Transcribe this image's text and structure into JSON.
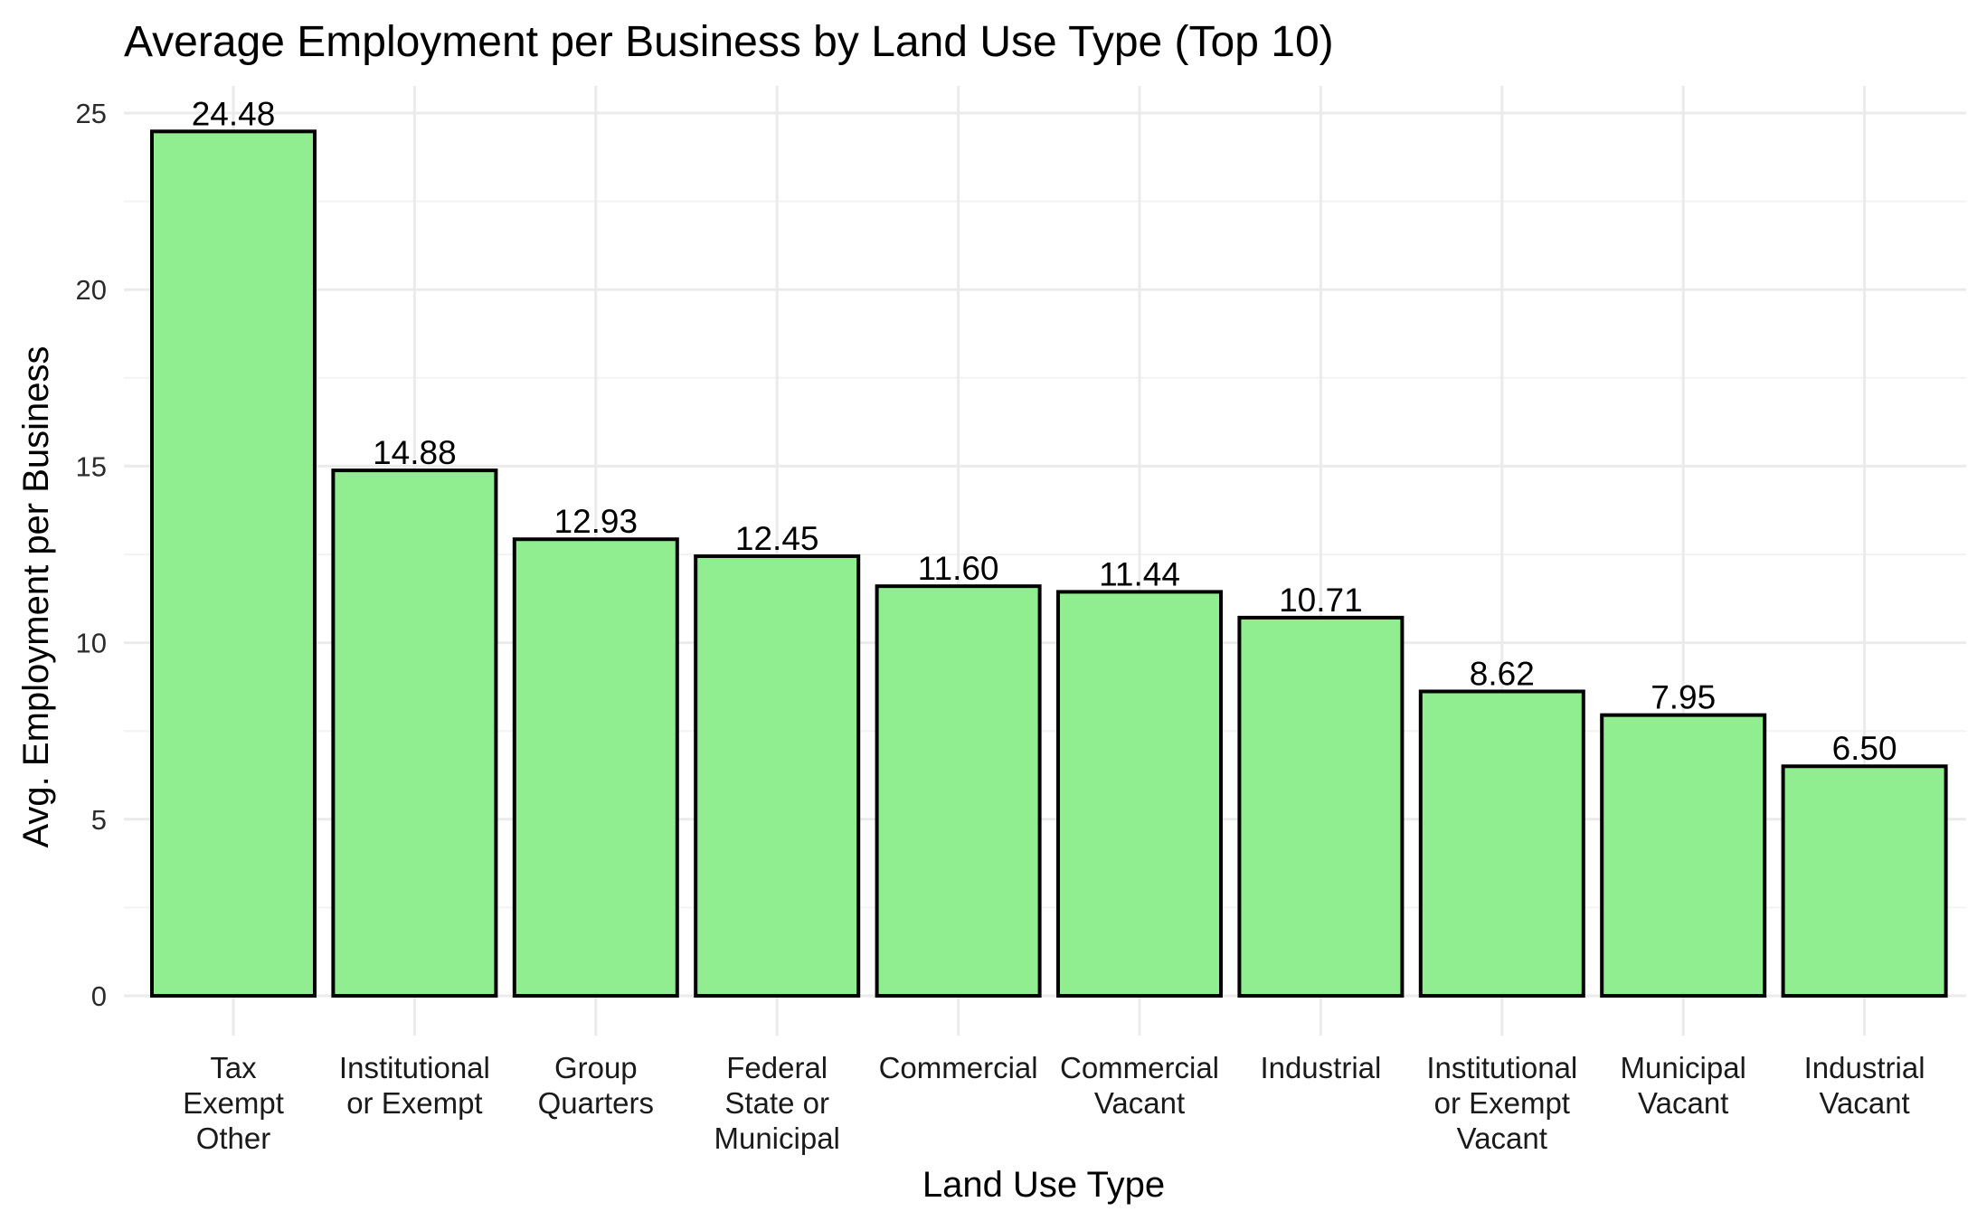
{
  "chart_data": {
    "type": "bar",
    "title": "Average Employment per Business by Land Use Type (Top 10)",
    "xlabel": "Land Use Type",
    "ylabel": "Avg. Employment per Business",
    "categories": [
      [
        "Tax",
        "Exempt",
        "Other"
      ],
      [
        "Institutional",
        "or Exempt"
      ],
      [
        "Group",
        "Quarters"
      ],
      [
        "Federal",
        "State or",
        "Municipal"
      ],
      [
        "Commercial"
      ],
      [
        "Commercial",
        "Vacant"
      ],
      [
        "Industrial"
      ],
      [
        "Institutional",
        "or Exempt",
        "Vacant"
      ],
      [
        "Municipal",
        "Vacant"
      ],
      [
        "Industrial",
        "Vacant"
      ]
    ],
    "values": [
      24.48,
      14.88,
      12.93,
      12.45,
      11.6,
      11.44,
      10.71,
      8.62,
      7.95,
      6.5
    ],
    "value_labels": [
      "24.48",
      "14.88",
      "12.93",
      "12.45",
      "11.60",
      "11.44",
      "10.71",
      "8.62",
      "7.95",
      "6.50"
    ],
    "ylim": [
      0,
      25
    ],
    "yticks": [
      0,
      5,
      10,
      15,
      20,
      25
    ],
    "grid": true,
    "legend": "none",
    "bar_color": "#90ee90",
    "bar_edge_color": "#000000"
  }
}
